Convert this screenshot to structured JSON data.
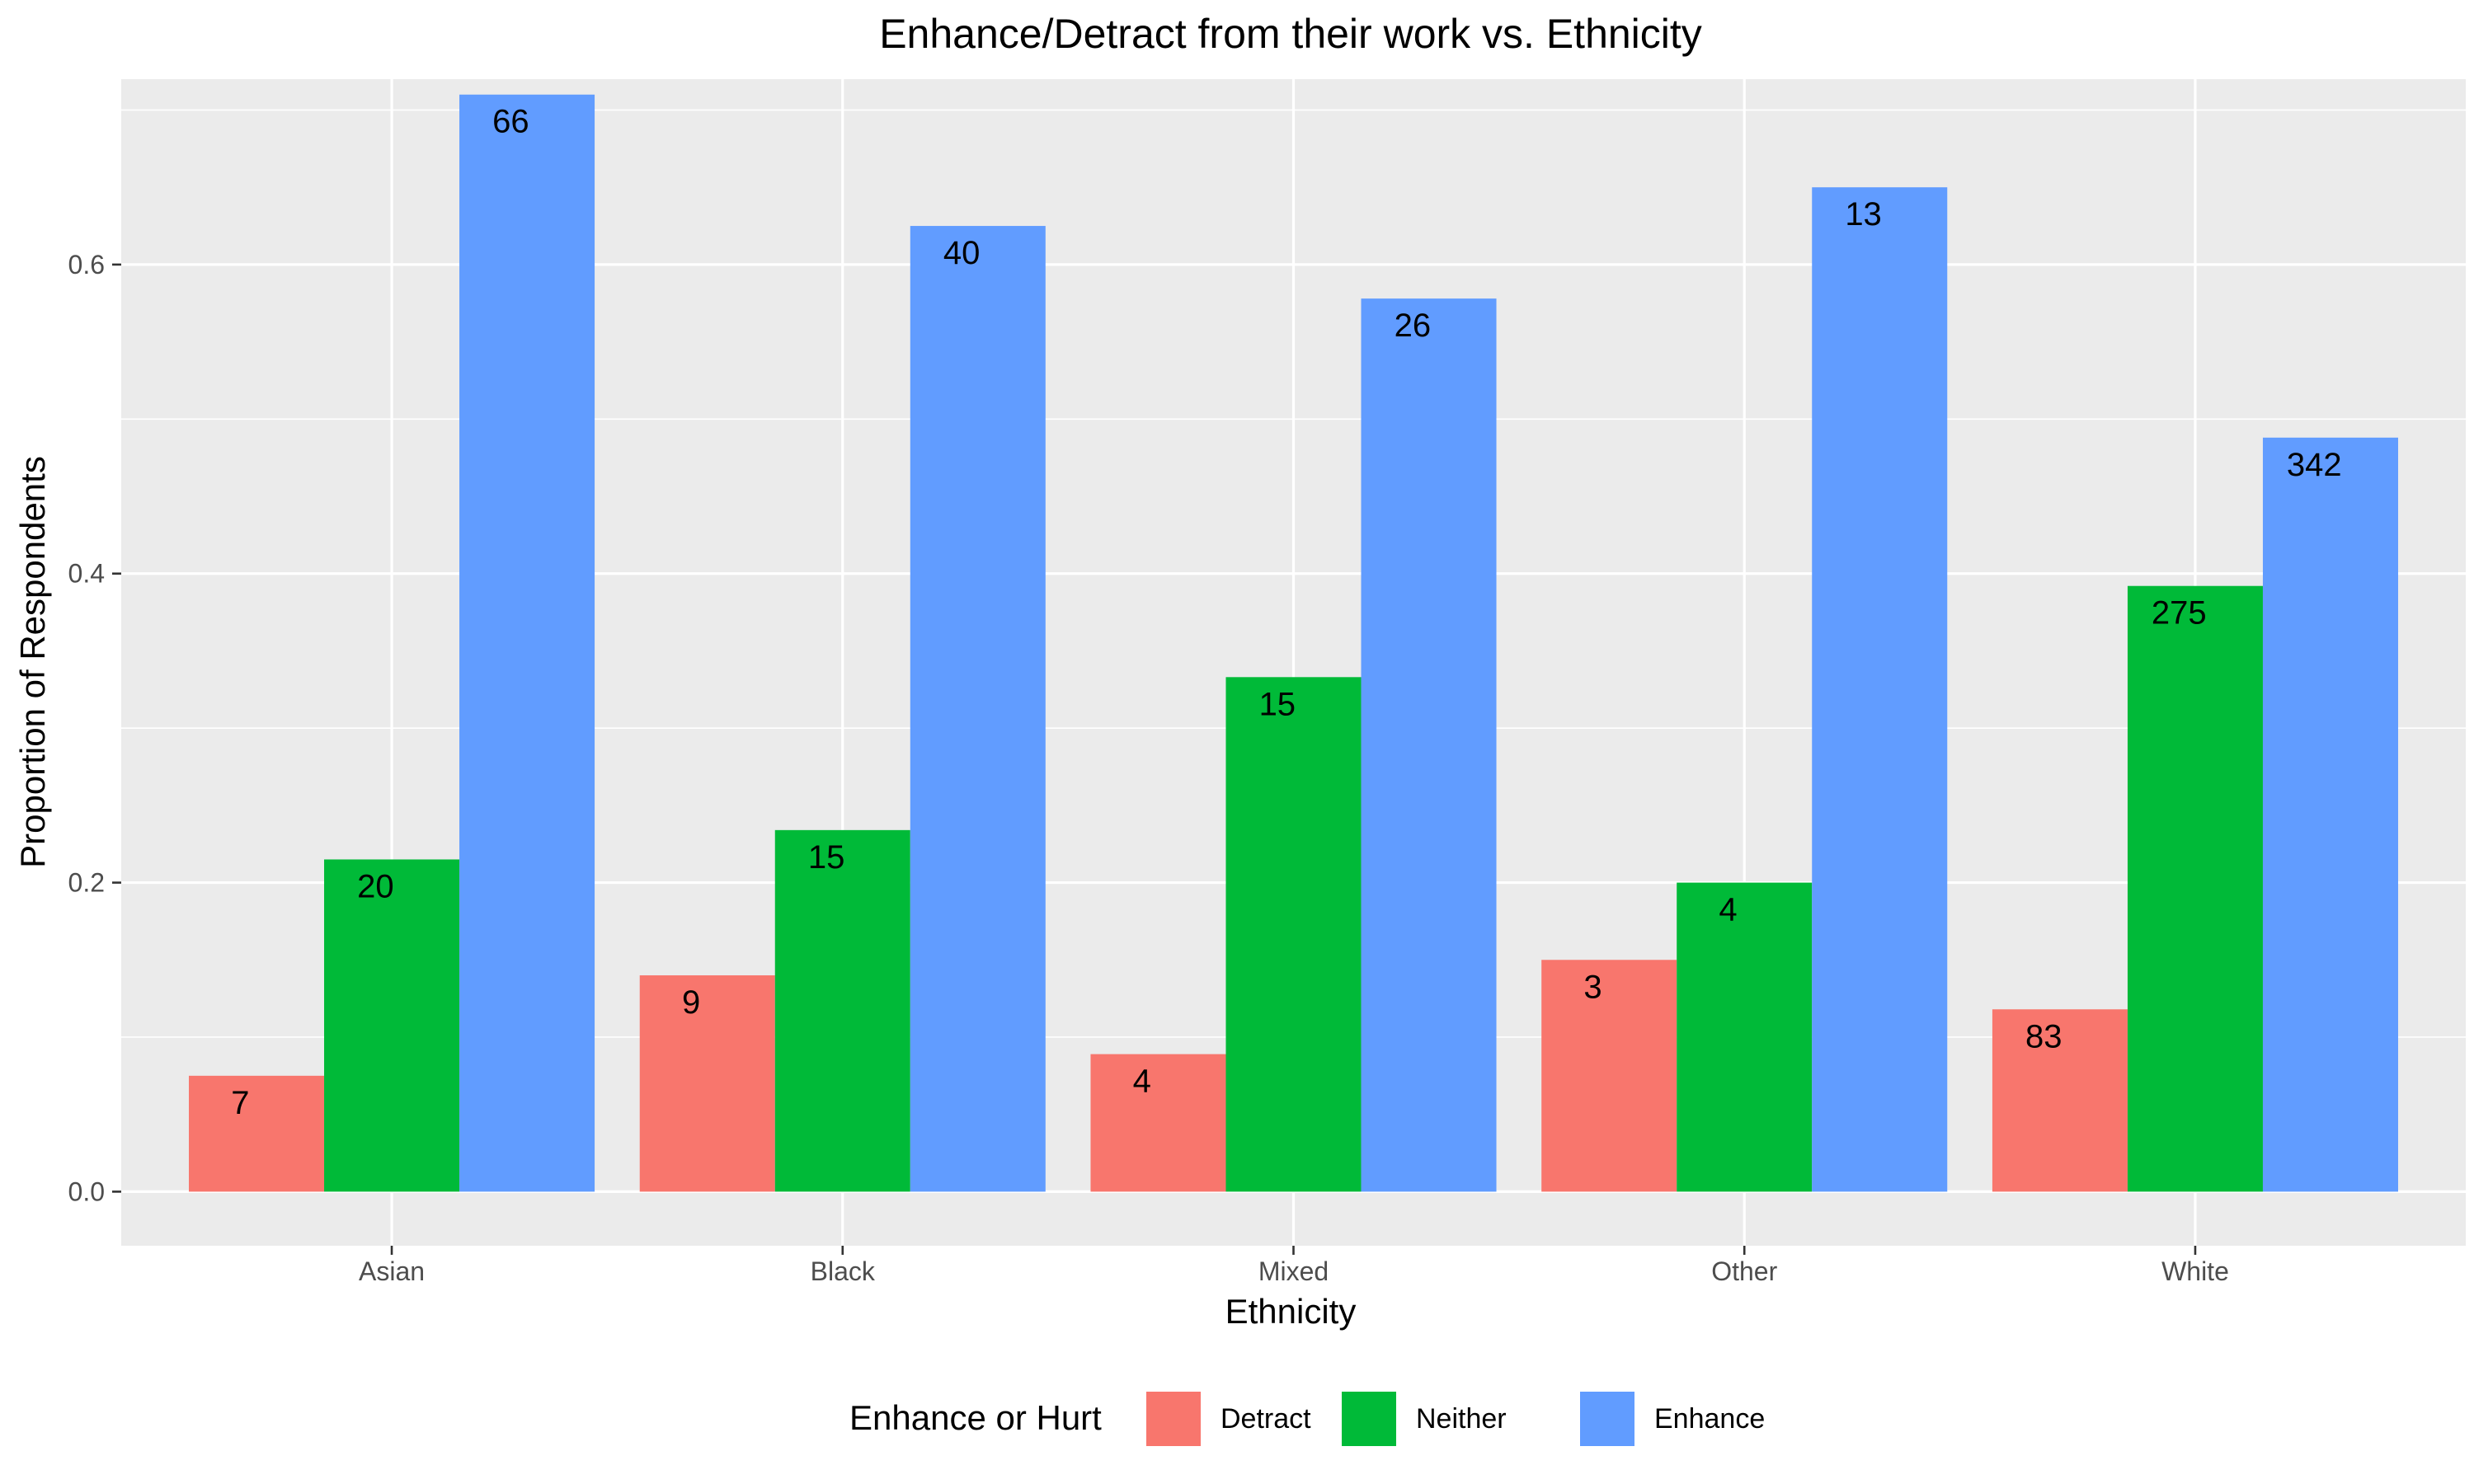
{
  "chart_data": {
    "type": "bar",
    "title": "Enhance/Detract from their work vs. Ethnicity",
    "xlabel": "Ethnicity",
    "ylabel": "Proportion of Respondents",
    "categories": [
      "Asian",
      "Black",
      "Mixed",
      "Other",
      "White"
    ],
    "ylim": [
      -0.035,
      0.72
    ],
    "y_ticks": [
      0.0,
      0.2,
      0.4,
      0.6
    ],
    "y_tick_labels": [
      "0.0",
      "0.2",
      "0.4",
      "0.6"
    ],
    "grid": true,
    "legend": {
      "title": "Enhance or Hurt",
      "position": "bottom"
    },
    "series": [
      {
        "name": "Detract",
        "color": "#F8766D",
        "values": [
          0.075,
          0.14,
          0.089,
          0.15,
          0.118
        ],
        "labels": [
          "7",
          "9",
          "4",
          "3",
          "83"
        ]
      },
      {
        "name": "Neither",
        "color": "#00BA38",
        "values": [
          0.215,
          0.234,
          0.333,
          0.2,
          0.392
        ],
        "labels": [
          "20",
          "15",
          "15",
          "4",
          "275"
        ]
      },
      {
        "name": "Enhance",
        "color": "#619CFF",
        "values": [
          0.71,
          0.625,
          0.578,
          0.65,
          0.488
        ],
        "labels": [
          "66",
          "40",
          "26",
          "13",
          "342"
        ]
      }
    ]
  }
}
